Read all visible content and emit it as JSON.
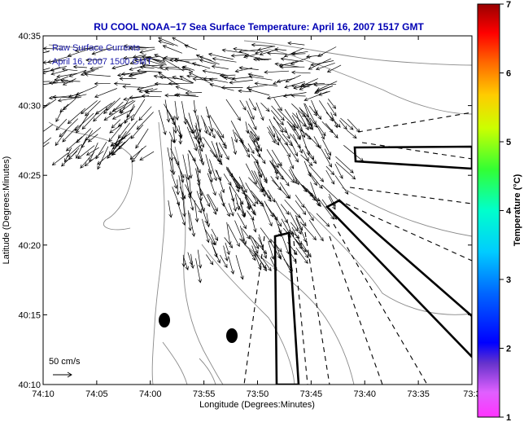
{
  "title": "RU COOL  NOAA−17  Sea Surface Temperature:  April 16, 2007 1517 GMT",
  "legend": {
    "line1": "Raw Surface Currents",
    "line2": "April 16, 2007 1500 GMT",
    "scale_label": "50 cm/s"
  },
  "axes": {
    "xlabel": "Longitude (Degrees:Minutes)",
    "ylabel": "Latitude (Degrees:Minutes)",
    "xticks": [
      "74:10",
      "74:05",
      "74:00",
      "73:55",
      "73:50",
      "73:45",
      "73:40",
      "73:35",
      "73:3"
    ],
    "yticks": [
      "40:35",
      "40:30",
      "40:25",
      "40:20",
      "40:15",
      "40:10"
    ]
  },
  "colorbar": {
    "label": "Temperature (°C)",
    "ticks": [
      "7",
      "6",
      "5",
      "4",
      "3",
      "2",
      "1"
    ],
    "range": [
      1,
      7
    ]
  },
  "colors": {
    "title": "#0000b4",
    "legend_text": "#1a1aa8",
    "contour": "#888888",
    "arrows": "#000000"
  },
  "map_features": {
    "current_vectors": "dense field of surface current arrows over the harbor and bight",
    "shipping_lanes": "dashed lane lines with solid separation zones",
    "markers": "two filled black ovals"
  }
}
